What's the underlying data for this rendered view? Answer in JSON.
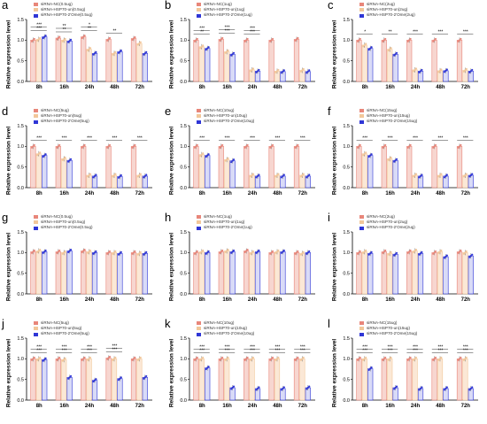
{
  "figure": {
    "ylabel": "Relative expression level",
    "colors": {
      "nc": "#e8867a",
      "un": "#f2c79a",
      "ome": "#2f36d6",
      "bar_nc": "#f7d6d0",
      "bar_un": "#fbe8d6",
      "bar_ome": "#d9dbf7"
    }
  },
  "chart_data": [
    {
      "type": "bar",
      "panel": "a",
      "categories": [
        "8h",
        "16h",
        "24h",
        "48h",
        "72h"
      ],
      "ylim": [
        0,
        1.5
      ],
      "ylabel": "Relative expression level",
      "series": [
        {
          "name": "siRNA-NC(0.5ug)",
          "values": [
            1.0,
            1.05,
            1.08,
            1.02,
            1.04
          ]
        },
        {
          "name": "siRNA-HSP70-un(0.5ug)",
          "values": [
            1.02,
            1.0,
            0.78,
            0.68,
            0.92
          ]
        },
        {
          "name": "siRNA-HSP70-2'Ome(0.5ug)",
          "values": [
            1.08,
            0.98,
            0.68,
            0.72,
            0.68
          ]
        }
      ],
      "annotations": [
        "***",
        "***",
        "**",
        "**",
        "**",
        "*",
        "**"
      ]
    },
    {
      "type": "bar",
      "panel": "b",
      "categories": [
        "8h",
        "16h",
        "24h",
        "48h",
        "72h"
      ],
      "ylim": [
        0,
        1.5
      ],
      "ylabel": "Relative expression level",
      "series": [
        {
          "name": "siRNA-NC(1ug)",
          "values": [
            1.0,
            1.02,
            1.0,
            1.0,
            1.02
          ]
        },
        {
          "name": "siRNA-HSP70-un(1ug)",
          "values": [
            0.84,
            0.72,
            0.28,
            0.25,
            0.27
          ]
        },
        {
          "name": "siRNA-HSP70-2'Ome(1ug)",
          "values": [
            0.8,
            0.66,
            0.25,
            0.24,
            0.24
          ]
        }
      ],
      "annotations": [
        "**",
        "***",
        "***",
        "***",
        "***",
        "***"
      ]
    },
    {
      "type": "bar",
      "panel": "c",
      "categories": [
        "8h",
        "16h",
        "24h",
        "48h",
        "72h"
      ],
      "ylim": [
        0,
        1.5
      ],
      "ylabel": "Relative expression level",
      "series": [
        {
          "name": "siRNA-NC(2ug)",
          "values": [
            1.0,
            1.0,
            1.0,
            1.0,
            1.0
          ]
        },
        {
          "name": "siRNA-HSP70-un(2ug)",
          "values": [
            0.88,
            0.78,
            0.28,
            0.26,
            0.27
          ]
        },
        {
          "name": "siRNA-HSP70-2'Ome(2ug)",
          "values": [
            0.8,
            0.66,
            0.25,
            0.26,
            0.25
          ]
        }
      ],
      "annotations": [
        "*",
        "**",
        "***",
        "***",
        "***"
      ]
    },
    {
      "type": "bar",
      "panel": "d",
      "categories": [
        "8h",
        "16h",
        "24h",
        "48h",
        "72h"
      ],
      "ylim": [
        0,
        1.5
      ],
      "ylabel": "Relative expression level",
      "series": [
        {
          "name": "siRNA-NC(5ug)",
          "values": [
            1.0,
            1.0,
            1.0,
            1.0,
            1.0
          ]
        },
        {
          "name": "siRNA-HSP70-un(5ug)",
          "values": [
            0.82,
            0.7,
            0.3,
            0.3,
            0.3
          ]
        },
        {
          "name": "siRNA-HSP70-2'Ome(5ug)",
          "values": [
            0.78,
            0.66,
            0.28,
            0.27,
            0.28
          ]
        }
      ],
      "annotations": [
        "***",
        "***",
        "***",
        "***",
        "***"
      ]
    },
    {
      "type": "bar",
      "panel": "e",
      "categories": [
        "8h",
        "16h",
        "24h",
        "48h",
        "72h"
      ],
      "ylim": [
        0,
        1.5
      ],
      "ylabel": "Relative expression level",
      "series": [
        {
          "name": "siRNA-NC(10ug)",
          "values": [
            1.0,
            1.0,
            1.0,
            1.0,
            1.0
          ]
        },
        {
          "name": "siRNA-HSP70-un(10ug)",
          "values": [
            0.8,
            0.68,
            0.3,
            0.3,
            0.3
          ]
        },
        {
          "name": "siRNA-HSP70-2'Ome(10ug)",
          "values": [
            0.78,
            0.65,
            0.28,
            0.28,
            0.28
          ]
        }
      ],
      "annotations": [
        "***",
        "***",
        "***",
        "***",
        "***"
      ]
    },
    {
      "type": "bar",
      "panel": "f",
      "categories": [
        "8h",
        "16h",
        "24h",
        "48h",
        "72h"
      ],
      "ylim": [
        0,
        1.5
      ],
      "ylabel": "Relative expression level",
      "series": [
        {
          "name": "siRNA-NC(15ug)",
          "values": [
            1.0,
            1.0,
            1.0,
            1.0,
            1.0
          ]
        },
        {
          "name": "siRNA-HSP70-un(15ug)",
          "values": [
            0.82,
            0.7,
            0.3,
            0.3,
            0.3
          ]
        },
        {
          "name": "siRNA-HSP70-2'Ome(15ug)",
          "values": [
            0.78,
            0.66,
            0.28,
            0.28,
            0.3
          ]
        }
      ],
      "annotations": [
        "***",
        "***",
        "***",
        "***",
        "***"
      ]
    },
    {
      "type": "bar",
      "panel": "g",
      "categories": [
        "8h",
        "16h",
        "24h",
        "48h",
        "72h"
      ],
      "ylim": [
        0,
        1.5
      ],
      "ylabel": "Relative expression level",
      "series": [
        {
          "name": "siRNA-NC(0.5ug)",
          "values": [
            1.02,
            1.02,
            1.04,
            1.0,
            1.0
          ]
        },
        {
          "name": "siRNA-HSP70-un(0.5ug)",
          "values": [
            1.04,
            1.0,
            1.02,
            1.0,
            0.98
          ]
        },
        {
          "name": "siRNA-HSP70-2'Ome(0.5ug)",
          "values": [
            1.02,
            1.04,
            1.0,
            0.98,
            0.98
          ]
        }
      ],
      "annotations": []
    },
    {
      "type": "bar",
      "panel": "h",
      "categories": [
        "8h",
        "16h",
        "24h",
        "48h",
        "72h"
      ],
      "ylim": [
        0,
        1.5
      ],
      "ylabel": "Relative expression level",
      "series": [
        {
          "name": "siRNA-NC(1ug)",
          "values": [
            1.0,
            1.02,
            1.04,
            1.0,
            1.0
          ]
        },
        {
          "name": "siRNA-HSP70-un(1ug)",
          "values": [
            1.02,
            1.04,
            1.0,
            1.02,
            0.98
          ]
        },
        {
          "name": "siRNA-HSP70-2'Ome(1ug)",
          "values": [
            1.0,
            1.02,
            1.02,
            1.02,
            1.0
          ]
        }
      ],
      "annotations": []
    },
    {
      "type": "bar",
      "panel": "i",
      "categories": [
        "8h",
        "16h",
        "24h",
        "48h",
        "72h"
      ],
      "ylim": [
        0,
        1.5
      ],
      "ylabel": "Relative expression level",
      "series": [
        {
          "name": "siRNA-NC(2ug)",
          "values": [
            1.0,
            1.02,
            1.02,
            1.0,
            1.02
          ]
        },
        {
          "name": "siRNA-HSP70-un(2ug)",
          "values": [
            1.02,
            0.98,
            1.04,
            1.02,
            1.0
          ]
        },
        {
          "name": "siRNA-HSP70-2'Ome(2ug)",
          "values": [
            0.98,
            0.96,
            0.98,
            0.9,
            0.92
          ]
        }
      ],
      "annotations": []
    },
    {
      "type": "bar",
      "panel": "j",
      "categories": [
        "8h",
        "16h",
        "24h",
        "48h",
        "72h"
      ],
      "ylim": [
        0,
        1.5
      ],
      "ylabel": "Relative expression level",
      "series": [
        {
          "name": "siRNA-NC(5ug)",
          "values": [
            1.0,
            1.0,
            1.0,
            1.02,
            1.0
          ]
        },
        {
          "name": "siRNA-HSP70-un(5ug)",
          "values": [
            1.0,
            0.98,
            1.0,
            1.0,
            1.0
          ]
        },
        {
          "name": "siRNA-HSP70-2'Ome(5ug)",
          "values": [
            0.98,
            0.55,
            0.48,
            0.52,
            0.55
          ]
        }
      ],
      "annotations": [
        "***",
        "***",
        "***",
        "***",
        "***",
        "***",
        "***",
        "***"
      ]
    },
    {
      "type": "bar",
      "panel": "k",
      "categories": [
        "8h",
        "16h",
        "24h",
        "48h",
        "72h"
      ],
      "ylim": [
        0,
        1.5
      ],
      "ylabel": "Relative expression level",
      "series": [
        {
          "name": "siRNA-NC(10ug)",
          "values": [
            1.0,
            1.0,
            1.0,
            1.0,
            1.0
          ]
        },
        {
          "name": "siRNA-HSP70-un(10ug)",
          "values": [
            1.0,
            1.0,
            1.0,
            1.0,
            1.0
          ]
        },
        {
          "name": "siRNA-HSP70-2'Ome(10ug)",
          "values": [
            0.78,
            0.3,
            0.28,
            0.28,
            0.3
          ]
        }
      ],
      "annotations": [
        "***",
        "***",
        "***",
        "***",
        "***",
        "***",
        "***",
        "***",
        "***",
        "***"
      ]
    },
    {
      "type": "bar",
      "panel": "l",
      "categories": [
        "8h",
        "16h",
        "24h",
        "48h",
        "72h"
      ],
      "ylim": [
        0,
        1.5
      ],
      "ylabel": "Relative expression level",
      "series": [
        {
          "name": "siRNA-NC(15ug)",
          "values": [
            1.0,
            1.0,
            1.0,
            1.0,
            1.0
          ]
        },
        {
          "name": "siRNA-HSP70-un(15ug)",
          "values": [
            1.0,
            1.0,
            1.0,
            1.0,
            1.0
          ]
        },
        {
          "name": "siRNA-HSP70-2'Ome(15ug)",
          "values": [
            0.76,
            0.3,
            0.28,
            0.28,
            0.28
          ]
        }
      ],
      "annotations": [
        "***",
        "***",
        "***",
        "***",
        "***",
        "***",
        "***",
        "***",
        "***",
        "***"
      ]
    }
  ],
  "yticks": [
    "0.0",
    "0.5",
    "1.0",
    "1.5"
  ]
}
